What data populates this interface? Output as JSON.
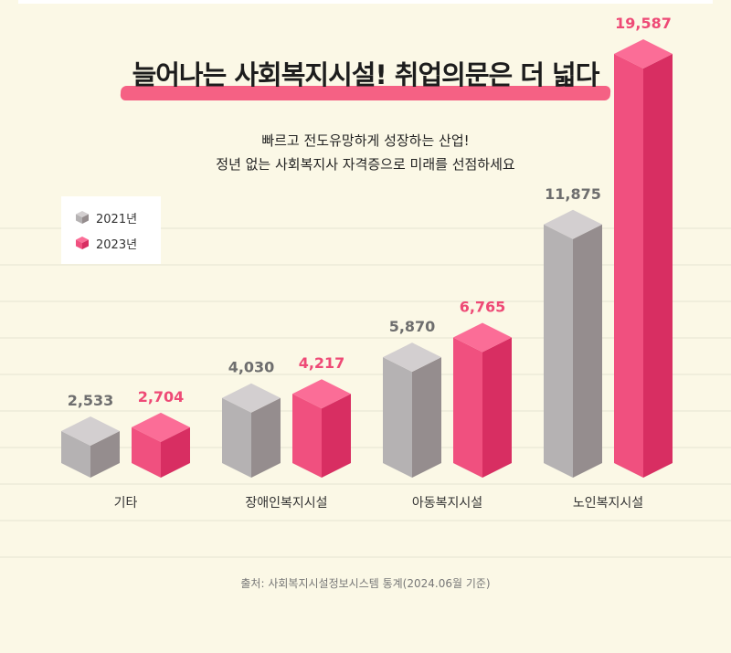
{
  "header": {
    "title": "늘어나는 사회복지시설! 취업의문은 더 넓다",
    "subtitle_line1": "빠르고 전도유망하게 성장하는 산업!",
    "subtitle_line2": "정년 없는 사회복지사 자격증으로 미래를 선점하세요"
  },
  "legend": {
    "items": [
      {
        "label": "2021년",
        "color": "#a8a5a6"
      },
      {
        "label": "2023년",
        "color": "#f0507f"
      }
    ]
  },
  "footer": {
    "source": "출처: 사회복지시설정보시스템 통계(2024.06월 기준)"
  },
  "colors": {
    "gray_front": "#b5b2b3",
    "gray_side": "#958d8e",
    "gray_top": "#d3cfd0",
    "pink_front": "#f0507f",
    "pink_side": "#d82e62",
    "pink_top": "#fb6d97",
    "gray_label": "#6e6e6e",
    "pink_label": "#ee4a76",
    "grid": "#e6e3d2"
  },
  "chart_data": {
    "type": "bar",
    "categories": [
      "기타",
      "장애인복지시설",
      "아동복지시설",
      "노인복지시설"
    ],
    "series": [
      {
        "name": "2021년",
        "values": [
          2533,
          4030,
          5870,
          11875
        ]
      },
      {
        "name": "2023년",
        "values": [
          2704,
          4217,
          6765,
          19587
        ]
      }
    ],
    "value_labels": [
      [
        "2,533",
        "4,030",
        "5,870",
        "11,875"
      ],
      [
        "2,704",
        "4,217",
        "6,765",
        "19,587"
      ]
    ],
    "legend_position": "top-left",
    "grid": true
  }
}
